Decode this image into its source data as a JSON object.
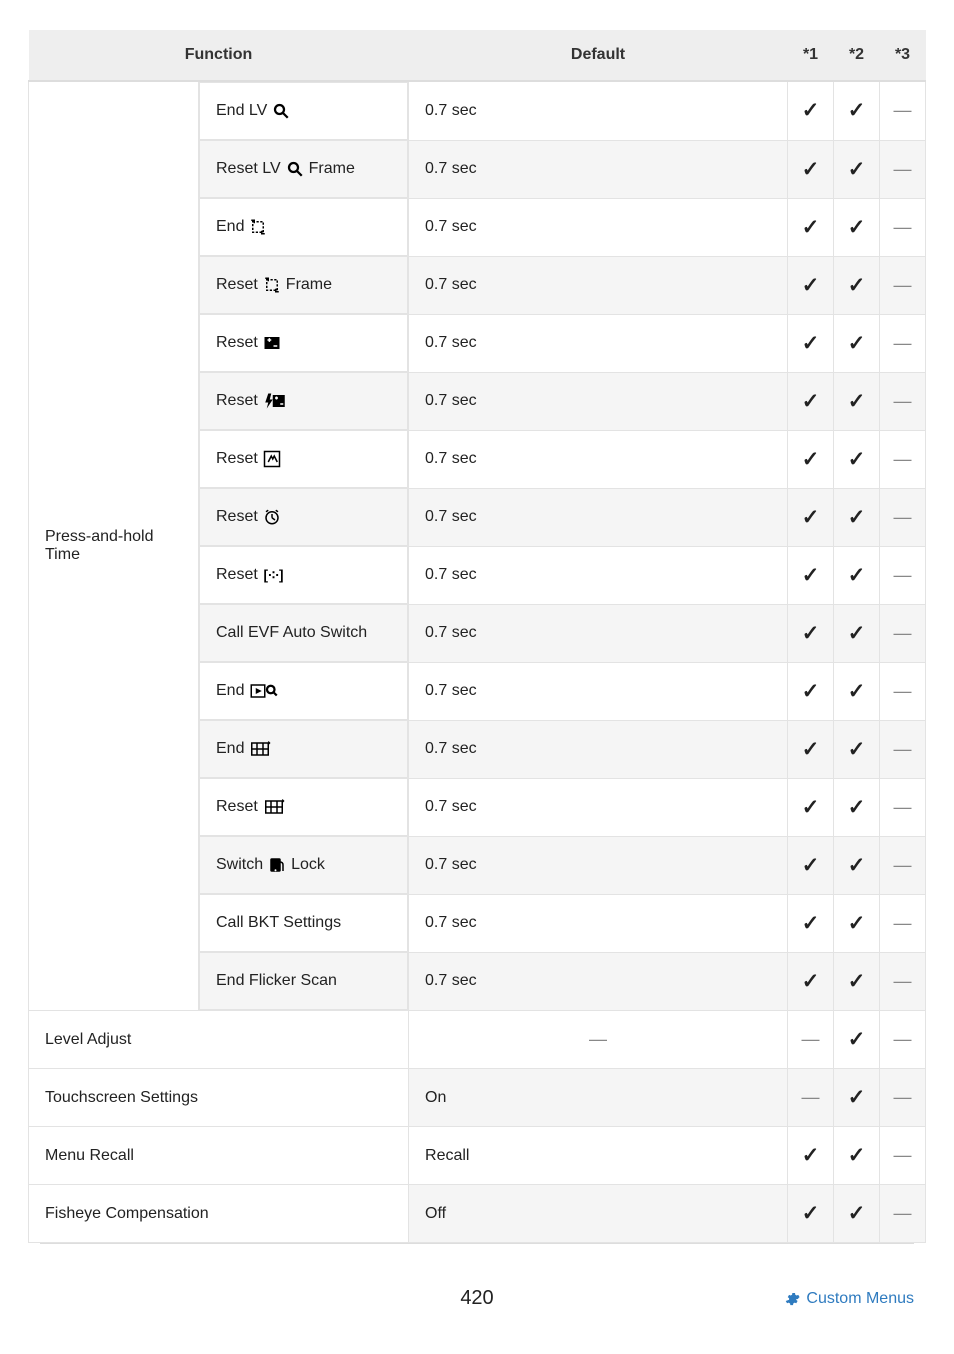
{
  "header": {
    "function": "Function",
    "default": "Default",
    "c1": "*1",
    "c2": "*2",
    "c3": "*3"
  },
  "group_label": "Press-and-hold Time",
  "rows": [
    {
      "func": "End LV",
      "icon": "magnify",
      "def": "0.7 sec",
      "m1": "check",
      "m2": "check",
      "m3": "dash"
    },
    {
      "func_pre": "Reset LV",
      "icon": "magnify",
      "func_post": "Frame",
      "def": "0.7 sec",
      "m1": "check",
      "m2": "check",
      "m3": "dash"
    },
    {
      "func": "End",
      "icon": "crop-arrow",
      "def": "0.7 sec",
      "m1": "check",
      "m2": "check",
      "m3": "dash"
    },
    {
      "func_pre": "Reset",
      "icon": "crop-arrow",
      "func_post": "Frame",
      "def": "0.7 sec",
      "m1": "check",
      "m2": "check",
      "m3": "dash"
    },
    {
      "func": "Reset",
      "icon": "exposure",
      "def": "0.7 sec",
      "m1": "check",
      "m2": "check",
      "m3": "dash"
    },
    {
      "func": "Reset",
      "icon": "flash-exposure",
      "def": "0.7 sec",
      "m1": "check",
      "m2": "check",
      "m3": "dash"
    },
    {
      "func": "Reset",
      "icon": "wb-box",
      "def": "0.7 sec",
      "m1": "check",
      "m2": "check",
      "m3": "dash"
    },
    {
      "func": "Reset",
      "icon": "self-timer",
      "def": "0.7 sec",
      "m1": "check",
      "m2": "check",
      "m3": "dash"
    },
    {
      "func": "Reset",
      "icon": "af-target",
      "def": "0.7 sec",
      "m1": "check",
      "m2": "check",
      "m3": "dash"
    },
    {
      "func": "Call EVF Auto Switch",
      "def": "0.7 sec",
      "m1": "check",
      "m2": "check",
      "m3": "dash"
    },
    {
      "func": "End",
      "icon": "play-zoom",
      "def": "0.7 sec",
      "m1": "check",
      "m2": "check",
      "m3": "dash"
    },
    {
      "func": "End",
      "icon": "grid",
      "def": "0.7 sec",
      "m1": "check",
      "m2": "check",
      "m3": "dash"
    },
    {
      "func": "Reset",
      "icon": "grid",
      "def": "0.7 sec",
      "m1": "check",
      "m2": "check",
      "m3": "dash"
    },
    {
      "func_pre": "Switch",
      "icon": "touch-lock",
      "func_post": "Lock",
      "def": "0.7 sec",
      "m1": "check",
      "m2": "check",
      "m3": "dash"
    },
    {
      "func": "Call BKT Settings",
      "def": "0.7 sec",
      "m1": "check",
      "m2": "check",
      "m3": "dash"
    },
    {
      "func": "End Flicker Scan",
      "def": "0.7 sec",
      "m1": "check",
      "m2": "check",
      "m3": "dash"
    }
  ],
  "flat_rows": [
    {
      "func": "Level Adjust",
      "def": "—",
      "m1": "dash",
      "m2": "check",
      "m3": "dash"
    },
    {
      "func": "Touchscreen Settings",
      "def": "On",
      "m1": "dash",
      "m2": "check",
      "m3": "dash"
    },
    {
      "func": "Menu Recall",
      "def": "Recall",
      "m1": "check",
      "m2": "check",
      "m3": "dash"
    },
    {
      "func": "Fisheye Compensation",
      "def": "Off",
      "m1": "check",
      "m2": "check",
      "m3": "dash"
    }
  ],
  "footer": {
    "page": "420",
    "link": "Custom Menus"
  },
  "colors": {
    "check": "#222222",
    "dash": "#888888",
    "header_bg": "#eeeeee",
    "link": "#2f7bbf"
  }
}
